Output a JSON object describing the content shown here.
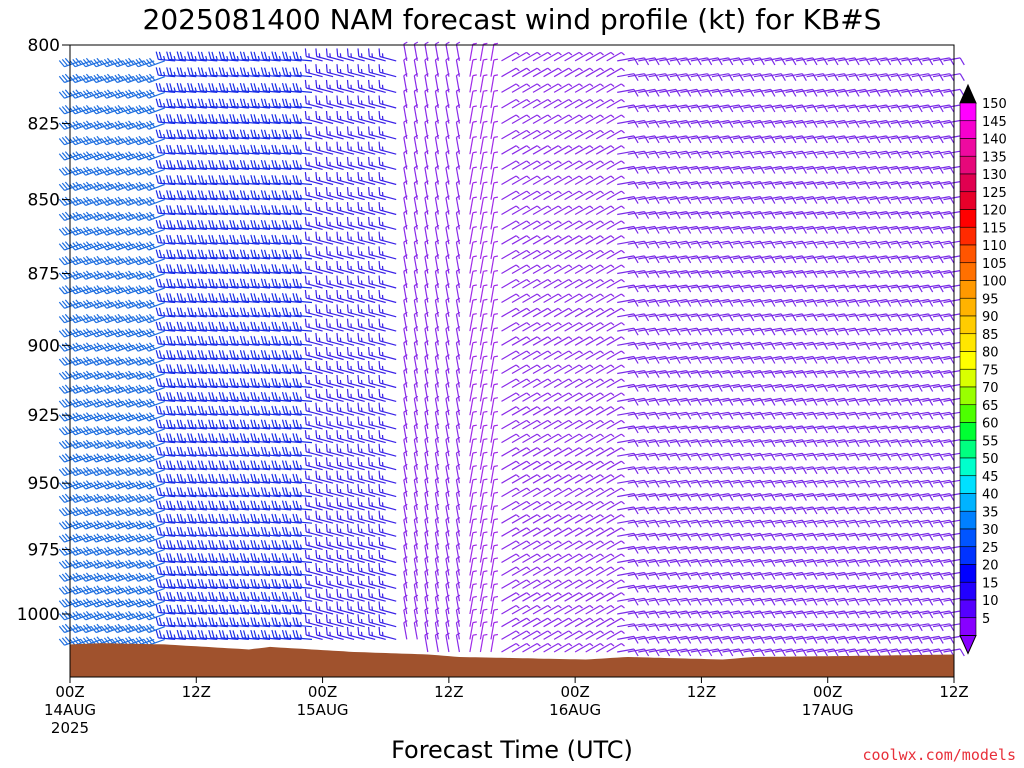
{
  "chart_data": {
    "type": "wind-barb time-height cross section",
    "title": "2025081400 NAM forecast wind profile (kt) for KB#S",
    "xlabel": "Forecast Time (UTC)",
    "ylabel": "",
    "credit": "coolwx.com/models",
    "y_ticks": [
      800,
      825,
      850,
      875,
      900,
      925,
      950,
      975,
      1000
    ],
    "ylim": [
      1022,
      800
    ],
    "x_ticks": [
      {
        "hour": 0,
        "line1": "00Z",
        "line2": "14AUG",
        "line3": "2025"
      },
      {
        "hour": 12,
        "line1": "12Z",
        "line2": "",
        "line3": ""
      },
      {
        "hour": 24,
        "line1": "00Z",
        "line2": "15AUG",
        "line3": ""
      },
      {
        "hour": 36,
        "line1": "12Z",
        "line2": "",
        "line3": ""
      },
      {
        "hour": 48,
        "line1": "00Z",
        "line2": "16AUG",
        "line3": ""
      },
      {
        "hour": 60,
        "line1": "12Z",
        "line2": "",
        "line3": ""
      },
      {
        "hour": 72,
        "line1": "00Z",
        "line2": "17AUG",
        "line3": ""
      },
      {
        "hour": 84,
        "line1": "12Z",
        "line2": "",
        "line3": ""
      }
    ],
    "xlim": [
      0,
      84
    ],
    "levels_mb": [
      1015,
      1010,
      1005,
      1000,
      995,
      990,
      985,
      980,
      975,
      970,
      965,
      960,
      955,
      950,
      945,
      940,
      935,
      930,
      925,
      920,
      915,
      910,
      905,
      900,
      895,
      890,
      885,
      880,
      875,
      870,
      865,
      860,
      855,
      850,
      845,
      840,
      835,
      830,
      825,
      820,
      815,
      810,
      805,
      800
    ],
    "wind_regimes": [
      {
        "hours": [
          0,
          10
        ],
        "dir_deg": 250,
        "speed_kt": 34,
        "color": "#1f6fe0"
      },
      {
        "hours": [
          10,
          24
        ],
        "dir_deg": 275,
        "speed_kt": 25,
        "color": "#1a2ee8"
      },
      {
        "hours": [
          24,
          32
        ],
        "dir_deg": 285,
        "speed_kt": 18,
        "color": "#3a22e8"
      },
      {
        "hours": [
          32,
          38
        ],
        "dir_deg": 350,
        "speed_kt": 8,
        "color": "#8a2be8"
      },
      {
        "hours": [
          38,
          41
        ],
        "dir_deg": 10,
        "speed_kt": 5,
        "color": "#a02be8"
      },
      {
        "hours": [
          41,
          52
        ],
        "dir_deg": 60,
        "speed_kt": 9,
        "color": "#8a2be8"
      },
      {
        "hours": [
          52,
          84
        ],
        "dir_deg": 80,
        "speed_kt": 14,
        "color": "#7a2be8"
      }
    ],
    "surface_pressure_mb": [
      {
        "hour": 0,
        "mb": 1012
      },
      {
        "hour": 3,
        "mb": 1011.5
      },
      {
        "hour": 9,
        "mb": 1012
      },
      {
        "hour": 13,
        "mb": 1013
      },
      {
        "hour": 17,
        "mb": 1014
      },
      {
        "hour": 19,
        "mb": 1013
      },
      {
        "hour": 23,
        "mb": 1014
      },
      {
        "hour": 27,
        "mb": 1015
      },
      {
        "hour": 34,
        "mb": 1016
      },
      {
        "hour": 37,
        "mb": 1017
      },
      {
        "hour": 49,
        "mb": 1018
      },
      {
        "hour": 53,
        "mb": 1017
      },
      {
        "hour": 62,
        "mb": 1018
      },
      {
        "hour": 65,
        "mb": 1017
      },
      {
        "hour": 76,
        "mb": 1016.5
      },
      {
        "hour": 84,
        "mb": 1016
      }
    ],
    "ground_color": "#a0522d",
    "colorbar": {
      "labels": [
        150,
        145,
        140,
        135,
        130,
        125,
        120,
        115,
        110,
        105,
        100,
        95,
        90,
        85,
        80,
        75,
        70,
        65,
        60,
        55,
        50,
        45,
        40,
        35,
        30,
        25,
        20,
        15,
        10,
        5
      ],
      "colors": [
        "#ff00ff",
        "#f700cf",
        "#ee0aa0",
        "#e6087a",
        "#e00050",
        "#e8002a",
        "#ff0000",
        "#ff2a00",
        "#ff5500",
        "#ff7000",
        "#ff9900",
        "#ffb300",
        "#ffcc00",
        "#ffe600",
        "#ffff00",
        "#d9ff00",
        "#99ff00",
        "#4dff00",
        "#00ff33",
        "#00ff80",
        "#00ffcc",
        "#00e0ff",
        "#00b3ff",
        "#0080ff",
        "#0055ff",
        "#0033ff",
        "#0000ff",
        "#2200ff",
        "#5500ff",
        "#8800ff"
      ]
    }
  }
}
